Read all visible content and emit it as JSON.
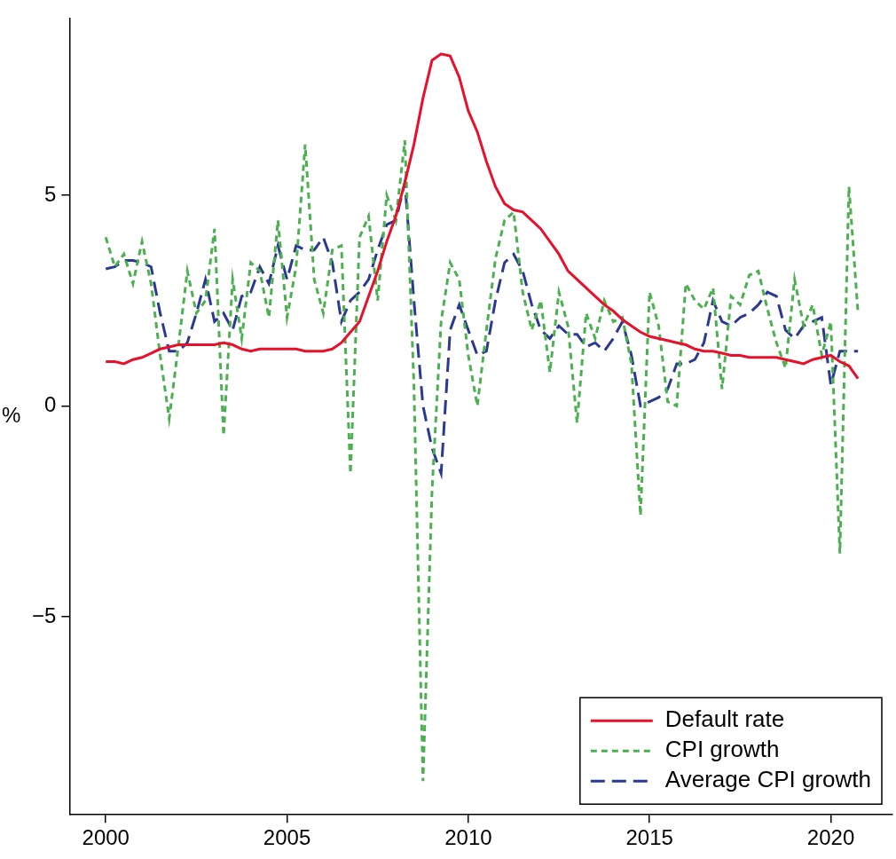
{
  "chart_data": {
    "type": "line",
    "y_label": "%",
    "x": [
      2000,
      2000.25,
      2000.5,
      2000.75,
      2001,
      2001.25,
      2001.5,
      2001.75,
      2002,
      2002.25,
      2002.5,
      2002.75,
      2003,
      2003.25,
      2003.5,
      2003.75,
      2004,
      2004.25,
      2004.5,
      2004.75,
      2005,
      2005.25,
      2005.5,
      2005.75,
      2006,
      2006.25,
      2006.5,
      2006.75,
      2007,
      2007.25,
      2007.5,
      2007.75,
      2008,
      2008.25,
      2008.5,
      2008.75,
      2009,
      2009.25,
      2009.5,
      2009.75,
      2010,
      2010.25,
      2010.5,
      2010.75,
      2011,
      2011.25,
      2011.5,
      2011.75,
      2012,
      2012.25,
      2012.5,
      2012.75,
      2013,
      2013.25,
      2013.5,
      2013.75,
      2014,
      2014.25,
      2014.5,
      2014.75,
      2015,
      2015.25,
      2015.5,
      2015.75,
      2016,
      2016.25,
      2016.5,
      2016.75,
      2017,
      2017.25,
      2017.5,
      2017.75,
      2018,
      2018.25,
      2018.5,
      2018.75,
      2019,
      2019.25,
      2019.5,
      2019.75,
      2020,
      2020.25,
      2020.5,
      2020.75
    ],
    "series": [
      {
        "name": "Default rate",
        "color": "#e8102a",
        "line_style": "solid",
        "values": [
          1.05,
          1.05,
          1.0,
          1.1,
          1.15,
          1.25,
          1.35,
          1.4,
          1.45,
          1.45,
          1.45,
          1.45,
          1.45,
          1.5,
          1.45,
          1.35,
          1.3,
          1.35,
          1.35,
          1.35,
          1.35,
          1.35,
          1.3,
          1.3,
          1.3,
          1.35,
          1.5,
          1.75,
          2.0,
          2.6,
          3.2,
          3.9,
          4.5,
          5.3,
          6.2,
          7.3,
          8.2,
          8.35,
          8.3,
          7.8,
          7.0,
          6.5,
          5.8,
          5.2,
          4.8,
          4.65,
          4.6,
          4.4,
          4.2,
          3.9,
          3.6,
          3.2,
          3.0,
          2.8,
          2.6,
          2.4,
          2.25,
          2.05,
          1.9,
          1.75,
          1.65,
          1.6,
          1.55,
          1.5,
          1.45,
          1.35,
          1.3,
          1.3,
          1.25,
          1.2,
          1.2,
          1.15,
          1.15,
          1.15,
          1.15,
          1.1,
          1.05,
          1.0,
          1.1,
          1.15,
          1.2,
          1.05,
          0.95,
          0.65
        ]
      },
      {
        "name": "CPI growth",
        "color": "#4cb050",
        "line_style": "dashed",
        "values": [
          4.0,
          3.3,
          3.6,
          2.9,
          3.9,
          2.9,
          1.2,
          -0.3,
          1.4,
          3.2,
          2.2,
          2.5,
          4.2,
          -0.7,
          3.0,
          1.6,
          3.4,
          3.2,
          2.1,
          4.4,
          2.1,
          3.3,
          6.2,
          3.0,
          2.2,
          3.7,
          3.8,
          -1.6,
          4.0,
          4.5,
          2.5,
          5.0,
          4.4,
          6.3,
          0.5,
          -8.9,
          -2.0,
          2.0,
          3.4,
          3.0,
          1.2,
          0.0,
          1.8,
          3.5,
          4.4,
          4.6,
          2.7,
          1.8,
          2.5,
          0.8,
          2.7,
          1.9,
          -0.4,
          2.2,
          1.6,
          2.5,
          2.0,
          2.1,
          1.0,
          -2.6,
          2.7,
          1.9,
          0.1,
          0.0,
          2.9,
          2.5,
          2.3,
          2.8,
          0.4,
          2.6,
          2.4,
          3.1,
          3.2,
          2.3,
          1.5,
          0.9,
          3.0,
          1.9,
          2.4,
          1.2,
          2.0,
          -3.5,
          5.2,
          2.2
        ]
      },
      {
        "name": "Average CPI growth",
        "color": "#2b3990",
        "line_style": "long_dashed",
        "values": [
          3.25,
          3.3,
          3.45,
          3.45,
          3.4,
          3.3,
          2.2,
          1.3,
          1.3,
          1.5,
          2.2,
          3.0,
          2.0,
          2.2,
          1.8,
          2.6,
          2.7,
          3.3,
          2.9,
          3.8,
          3.0,
          3.8,
          3.7,
          3.7,
          4.0,
          3.4,
          2.0,
          2.5,
          2.7,
          3.0,
          3.7,
          4.3,
          4.4,
          5.3,
          2.5,
          0.0,
          -1.0,
          -1.6,
          1.8,
          2.4,
          1.8,
          1.2,
          1.3,
          2.5,
          3.4,
          3.6,
          3.2,
          2.4,
          1.8,
          1.6,
          1.9,
          1.7,
          1.7,
          1.4,
          1.5,
          1.3,
          1.6,
          2.0,
          1.2,
          0.0,
          0.1,
          0.2,
          0.4,
          1.0,
          1.0,
          1.1,
          1.5,
          2.5,
          2.0,
          1.9,
          2.1,
          2.2,
          2.4,
          2.7,
          2.6,
          1.8,
          1.6,
          1.9,
          2.0,
          2.1,
          0.5,
          1.3,
          1.3,
          1.3
        ]
      }
    ],
    "xlim": [
      1999,
      2021.7
    ],
    "xticks": [
      2000,
      2005,
      2010,
      2015,
      2020
    ],
    "ylim": [
      -9.7,
      9.2
    ],
    "yticks": [
      {
        "value": -5,
        "label": "−5"
      },
      0,
      5
    ],
    "grid": false,
    "legend": "lower right"
  }
}
